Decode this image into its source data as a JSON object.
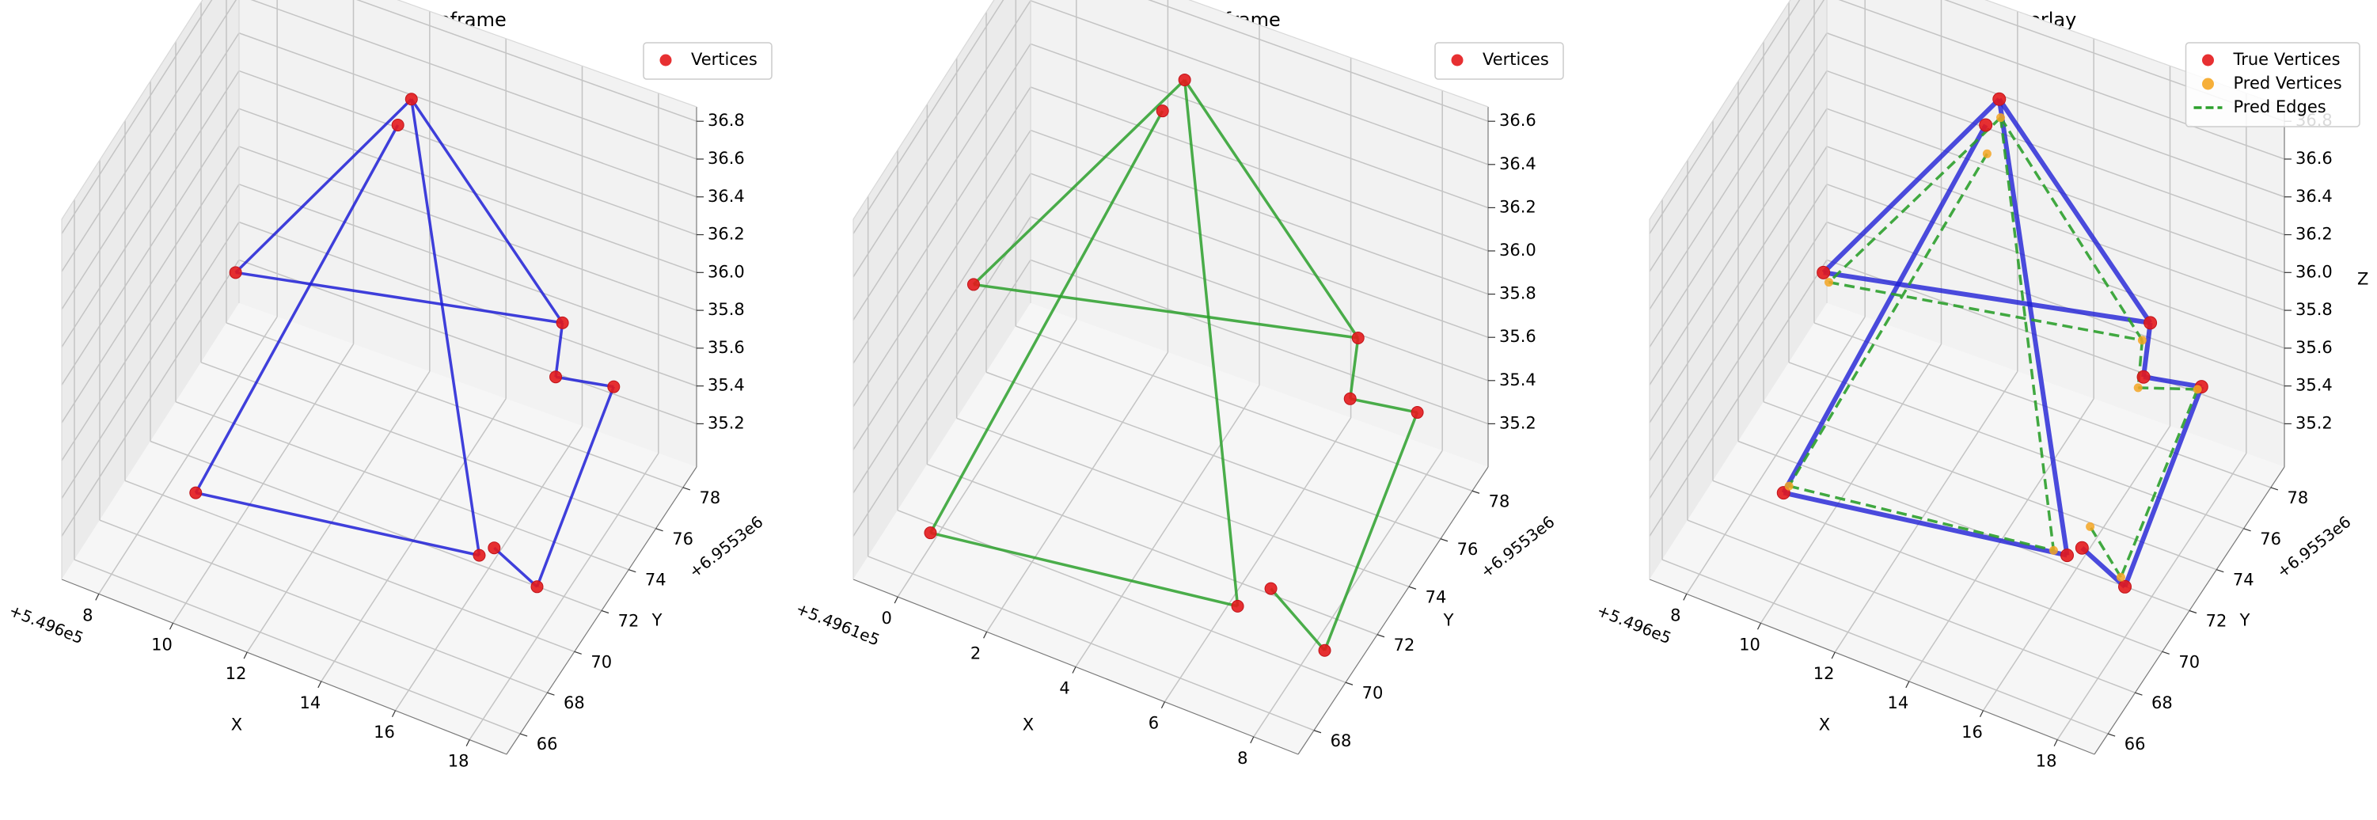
{
  "figure": {
    "panels": [
      {
        "id": "gt",
        "title": "Ground Truth Wireframe",
        "legend": {
          "placement": "top-right",
          "entries": [
            {
              "label": "Vertices",
              "kind": "marker",
              "color": "#e41a1c"
            }
          ]
        },
        "x_ticks": [
          "8",
          "10",
          "12",
          "14",
          "16",
          "18"
        ],
        "y_ticks": [
          "66",
          "68",
          "70",
          "72",
          "74",
          "76",
          "78"
        ],
        "z_ticks": [
          "35.2",
          "35.4",
          "35.6",
          "35.8",
          "36.0",
          "36.2",
          "36.4",
          "36.6",
          "36.8"
        ],
        "x_offset": "+5.496e5",
        "y_offset": "+6.9553e6",
        "x_label": "X",
        "y_label": "Y",
        "z_label": ""
      },
      {
        "id": "pred",
        "title": "Predicted Wireframe",
        "legend": {
          "placement": "top-right",
          "entries": [
            {
              "label": "Vertices",
              "kind": "marker",
              "color": "#e41a1c"
            }
          ]
        },
        "x_ticks": [
          "0",
          "2",
          "4",
          "6",
          "8"
        ],
        "y_ticks": [
          "68",
          "70",
          "72",
          "74",
          "76",
          "78"
        ],
        "z_ticks": [
          "35.2",
          "35.4",
          "35.6",
          "35.8",
          "36.0",
          "36.2",
          "36.4",
          "36.6"
        ],
        "x_offset": "+5.4961e5",
        "y_offset": "+6.9553e6",
        "x_label": "X",
        "y_label": "Y",
        "z_label": ""
      },
      {
        "id": "cmp",
        "title": "Comparison Overlay",
        "legend": {
          "placement": "top-right",
          "entries": [
            {
              "label": "True Vertices",
              "kind": "marker",
              "color": "#e41a1c"
            },
            {
              "label": "Pred Vertices",
              "kind": "marker",
              "color": "#f5a623"
            },
            {
              "label": "Pred Edges",
              "kind": "dashed-line",
              "color": "#2ca02c"
            }
          ]
        },
        "x_ticks": [
          "8",
          "10",
          "12",
          "14",
          "16",
          "18"
        ],
        "y_ticks": [
          "66",
          "68",
          "70",
          "72",
          "74",
          "76",
          "78"
        ],
        "z_ticks": [
          "35.2",
          "35.4",
          "35.6",
          "35.8",
          "36.0",
          "36.2",
          "36.4",
          "36.6",
          "36.8"
        ],
        "x_offset": "+5.496e5",
        "y_offset": "+6.9553e6",
        "x_label": "X",
        "y_label": "Y",
        "z_label": "Z"
      }
    ]
  },
  "chart_data": [
    {
      "type": "scatter",
      "subtype": "3d-wireframe",
      "title": "Ground Truth Wireframe",
      "xlabel": "X",
      "ylabel": "Y",
      "zlabel": "",
      "x_offset": 549600,
      "y_offset": 6955300,
      "xlim": [
        8,
        19
      ],
      "ylim": [
        65.5,
        78.5
      ],
      "zlim": [
        35.1,
        36.85
      ],
      "grid": true,
      "legend": "top-right",
      "colors": {
        "vertices": "#e41a1c",
        "edges": "#1f1fd6"
      },
      "vertices": [
        {
          "x": 12.6,
          "y": 77.5,
          "z": 36.55
        },
        {
          "x": 12.4,
          "y": 77.1,
          "z": 36.45
        },
        {
          "x": 9.5,
          "y": 73.8,
          "z": 35.85
        },
        {
          "x": 16.2,
          "y": 77.9,
          "z": 35.7
        },
        {
          "x": 16.1,
          "y": 77.7,
          "z": 35.45
        },
        {
          "x": 17.5,
          "y": 77.8,
          "z": 35.5
        },
        {
          "x": 10.2,
          "y": 68.8,
          "z": 35.35
        },
        {
          "x": 16.4,
          "y": 72.3,
          "z": 35.2
        },
        {
          "x": 16.2,
          "y": 71.8,
          "z": 35.2
        },
        {
          "x": 18.0,
          "y": 70.7,
          "z": 35.3
        }
      ],
      "edges": [
        [
          0,
          2
        ],
        [
          1,
          6
        ],
        [
          0,
          8
        ],
        [
          2,
          3
        ],
        [
          3,
          0
        ],
        [
          3,
          4
        ],
        [
          4,
          5
        ],
        [
          5,
          9
        ],
        [
          9,
          7
        ],
        [
          6,
          8
        ]
      ]
    },
    {
      "type": "scatter",
      "subtype": "3d-wireframe",
      "title": "Predicted Wireframe",
      "xlabel": "X",
      "ylabel": "Y",
      "zlabel": "",
      "x_offset": 549610,
      "y_offset": 6955300,
      "xlim": [
        -1,
        8.5
      ],
      "ylim": [
        67.5,
        78.5
      ],
      "zlim": [
        35.15,
        36.65
      ],
      "grid": true,
      "legend": "top-right",
      "colors": {
        "vertices": "#e41a1c",
        "edges": "#2ca02c"
      },
      "vertices": [
        {
          "x": 2.6,
          "y": 77.6,
          "z": 36.45
        },
        {
          "x": 2.3,
          "y": 77.1,
          "z": 36.35
        },
        {
          "x": -0.6,
          "y": 73.8,
          "z": 35.75
        },
        {
          "x": 6.2,
          "y": 77.9,
          "z": 35.62
        },
        {
          "x": 6.1,
          "y": 77.7,
          "z": 35.38
        },
        {
          "x": 7.5,
          "y": 77.8,
          "z": 35.42
        },
        {
          "x": 0.2,
          "y": 68.8,
          "z": 35.3
        },
        {
          "x": 6.3,
          "y": 72.2,
          "z": 35.18
        },
        {
          "x": 5.9,
          "y": 71.3,
          "z": 35.17
        },
        {
          "x": 8.0,
          "y": 70.6,
          "z": 35.22
        }
      ],
      "edges": [
        [
          0,
          2
        ],
        [
          1,
          6
        ],
        [
          0,
          8
        ],
        [
          2,
          3
        ],
        [
          3,
          0
        ],
        [
          3,
          4
        ],
        [
          4,
          5
        ],
        [
          5,
          9
        ],
        [
          9,
          7
        ],
        [
          6,
          8
        ]
      ]
    },
    {
      "type": "scatter",
      "subtype": "3d-wireframe-overlay",
      "title": "Comparison Overlay",
      "xlabel": "X",
      "ylabel": "Y",
      "zlabel": "Z",
      "x_offset": 549600,
      "y_offset": 6955300,
      "xlim": [
        8,
        19
      ],
      "ylim": [
        65.5,
        78.5
      ],
      "zlim": [
        35.1,
        36.85
      ],
      "grid": true,
      "legend": "top-right",
      "series": [
        {
          "name": "True Vertices",
          "color": "#e41a1c",
          "role": "vertices",
          "ref": "gt"
        },
        {
          "name": "Pred Vertices",
          "color": "#f5a623",
          "role": "vertices",
          "ref": "pred_aligned"
        },
        {
          "name": "Pred Edges",
          "color": "#2ca02c",
          "role": "edges-dashed",
          "ref": "pred_aligned"
        }
      ],
      "true_edge_color": "#1f1fd6",
      "pred_vertices": [
        {
          "x": 12.6,
          "y": 77.6,
          "z": 36.45
        },
        {
          "x": 12.4,
          "y": 77.2,
          "z": 36.3
        },
        {
          "x": 9.6,
          "y": 73.9,
          "z": 35.8
        },
        {
          "x": 16.0,
          "y": 77.9,
          "z": 35.6
        },
        {
          "x": 16.0,
          "y": 77.6,
          "z": 35.4
        },
        {
          "x": 17.4,
          "y": 77.8,
          "z": 35.48
        },
        {
          "x": 10.3,
          "y": 68.9,
          "z": 35.38
        },
        {
          "x": 16.5,
          "y": 72.6,
          "z": 35.28
        },
        {
          "x": 16.0,
          "y": 71.4,
          "z": 35.25
        },
        {
          "x": 17.8,
          "y": 71.0,
          "z": 35.3
        }
      ],
      "pred_edges": [
        [
          0,
          2
        ],
        [
          1,
          6
        ],
        [
          0,
          8
        ],
        [
          2,
          3
        ],
        [
          3,
          0
        ],
        [
          3,
          4
        ],
        [
          4,
          5
        ],
        [
          5,
          9
        ],
        [
          9,
          7
        ],
        [
          6,
          8
        ]
      ]
    }
  ]
}
